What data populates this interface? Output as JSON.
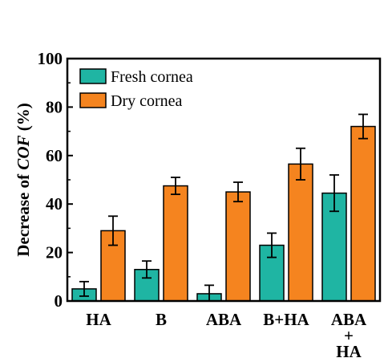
{
  "chart_data": {
    "type": "bar",
    "categories": [
      "HA",
      "B",
      "ABA",
      "B+HA",
      "ABA\n+\nHA"
    ],
    "series": [
      {
        "name": "Fresh cornea",
        "color": "#1fb5a3",
        "values": [
          5,
          13,
          3,
          23,
          44.5
        ],
        "errors": [
          3,
          3.5,
          3.5,
          5,
          7.5
        ]
      },
      {
        "name": "Dry cornea",
        "color": "#f5841f",
        "values": [
          29,
          47.5,
          45,
          56.5,
          72
        ],
        "errors": [
          6,
          3.5,
          4,
          6.5,
          5
        ]
      }
    ],
    "ylabel_prefix": "Decrease of ",
    "ylabel_italic": "COF",
    "ylabel_suffix": " (%)",
    "ylim": [
      0,
      100
    ],
    "yticks": [
      0,
      20,
      40,
      60,
      80,
      100
    ],
    "legend_position": "top-left",
    "grid": false
  }
}
